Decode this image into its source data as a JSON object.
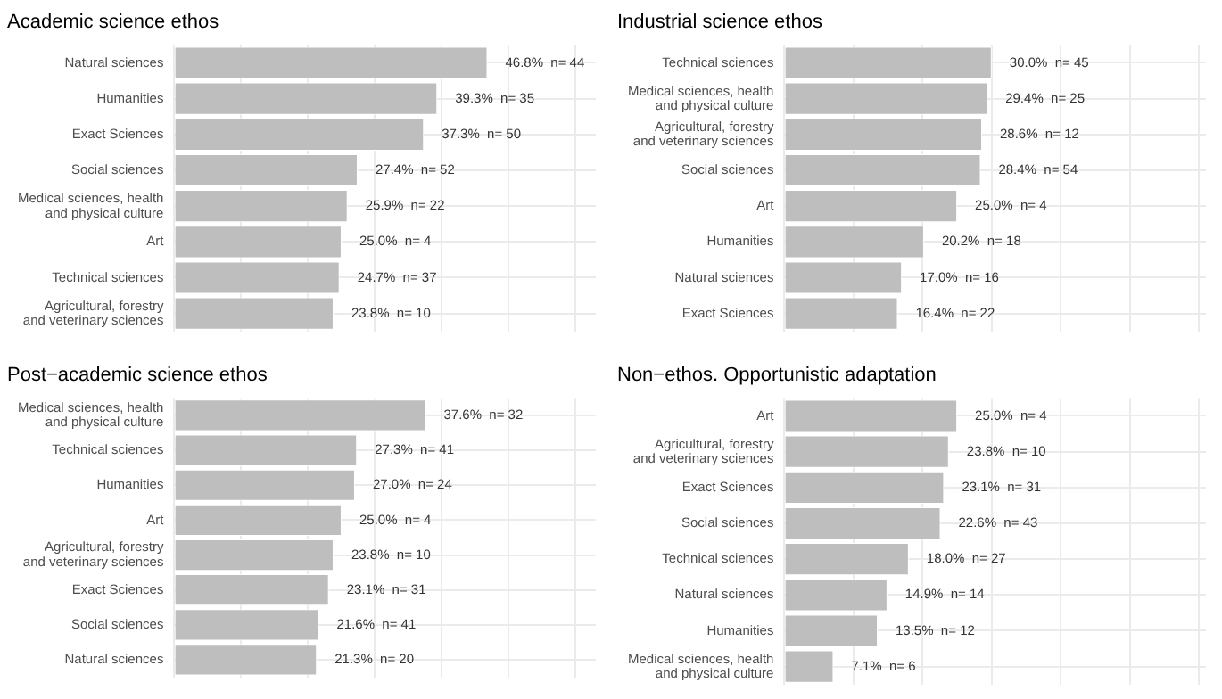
{
  "chart_data": [
    {
      "type": "bar",
      "orientation": "horizontal",
      "title": "Academic science ethos",
      "categories": [
        "Natural sciences",
        "Humanities",
        "Exact Sciences",
        "Social sciences",
        "Medical sciences, health\nand physical culture",
        "Art",
        "Technical sciences",
        "Agricultural, forestry\nand veterinary sciences"
      ],
      "values": [
        46.8,
        39.3,
        37.3,
        27.4,
        25.9,
        25.0,
        24.7,
        23.8
      ],
      "value_labels": [
        "46.8%  n= 44",
        "39.3%  n= 35",
        "37.3%  n= 50",
        "27.4%  n= 52",
        "25.9%  n= 22",
        "25.0%  n= 4",
        "24.7%  n= 37",
        "23.8%  n= 10"
      ],
      "color": "#bebebe",
      "xlim": [
        0,
        63
      ],
      "xticks": [
        {
          "value": 0,
          "label": null
        },
        {
          "value": 10,
          "label": null
        },
        {
          "value": 20,
          "label": null
        },
        {
          "value": 30,
          "label": null
        },
        {
          "value": 40,
          "label": null
        },
        {
          "value": 50,
          "label": null
        },
        {
          "value": 60,
          "label": null
        }
      ],
      "grid": true,
      "tick_labels": "y"
    },
    {
      "type": "bar",
      "orientation": "horizontal",
      "title": "Industrial science ethos",
      "categories": [
        "Technical sciences",
        "Medical sciences, health\nand physical culture",
        "Agricultural, forestry\nand veterinary sciences",
        "Social sciences",
        "Art",
        "Humanities",
        "Natural sciences",
        "Exact Sciences"
      ],
      "values": [
        30.0,
        29.4,
        28.6,
        28.4,
        25.0,
        20.2,
        17.0,
        16.4
      ],
      "value_labels": [
        "30.0%  n= 45",
        "29.4%  n= 25",
        "28.6%  n= 12",
        "28.4%  n= 54",
        "25.0%  n= 4",
        "20.2%  n= 18",
        "17.0%  n= 16",
        "16.4%  n= 22"
      ],
      "color": "#bebebe",
      "xlim": [
        0,
        61
      ],
      "xticks": [
        {
          "value": 0,
          "label": null
        },
        {
          "value": 10,
          "label": null
        },
        {
          "value": 20,
          "label": null
        },
        {
          "value": 30,
          "label": null
        },
        {
          "value": 40,
          "label": null
        },
        {
          "value": 50,
          "label": null
        },
        {
          "value": 60,
          "label": null
        }
      ],
      "grid": true,
      "tick_labels": "y"
    },
    {
      "type": "bar",
      "orientation": "horizontal",
      "title": "Post−academic science ethos",
      "categories": [
        "Medical sciences, health\nand physical culture",
        "Technical sciences",
        "Humanities",
        "Art",
        "Agricultural, forestry\nand veterinary sciences",
        "Exact Sciences",
        "Social sciences",
        "Natural sciences"
      ],
      "values": [
        37.6,
        27.3,
        27.0,
        25.0,
        23.8,
        23.1,
        21.6,
        21.3
      ],
      "value_labels": [
        "37.6%  n= 32",
        "27.3%  n= 41",
        "27.0%  n= 24",
        "25.0%  n= 4",
        "23.8%  n= 10",
        "23.1%  n= 31",
        "21.6%  n= 41",
        "21.3%  n= 20"
      ],
      "color": "#bebebe",
      "xlim": [
        0,
        63
      ],
      "xticks": [
        {
          "value": 0,
          "label": null
        },
        {
          "value": 10,
          "label": null
        },
        {
          "value": 20,
          "label": null
        },
        {
          "value": 30,
          "label": null
        },
        {
          "value": 40,
          "label": null
        },
        {
          "value": 50,
          "label": null
        },
        {
          "value": 60,
          "label": null
        }
      ],
      "grid": true,
      "tick_labels": "y"
    },
    {
      "type": "bar",
      "orientation": "horizontal",
      "title": "Non−ethos. Opportunistic adaptation",
      "categories": [
        "Art",
        "Agricultural, forestry\nand veterinary sciences",
        "Exact Sciences",
        "Social sciences",
        "Technical sciences",
        "Natural sciences",
        "Humanities",
        "Medical sciences, health\nand physical culture"
      ],
      "values": [
        25.0,
        23.8,
        23.1,
        22.6,
        18.0,
        14.9,
        13.5,
        7.1
      ],
      "value_labels": [
        "25.0%  n= 4",
        "23.8%  n= 10",
        "23.1%  n= 31",
        "22.6%  n= 43",
        "18.0%  n= 27",
        "14.9%  n= 14",
        "13.5%  n= 12",
        "7.1%  n= 6"
      ],
      "color": "#bebebe",
      "xlim": [
        0,
        61
      ],
      "xticks": [
        {
          "value": 0,
          "label": null
        },
        {
          "value": 10,
          "label": null
        },
        {
          "value": 20,
          "label": null
        },
        {
          "value": 30,
          "label": null
        },
        {
          "value": 40,
          "label": null
        },
        {
          "value": 50,
          "label": null
        },
        {
          "value": 60,
          "label": null
        }
      ],
      "grid": true,
      "tick_labels": "y"
    }
  ]
}
